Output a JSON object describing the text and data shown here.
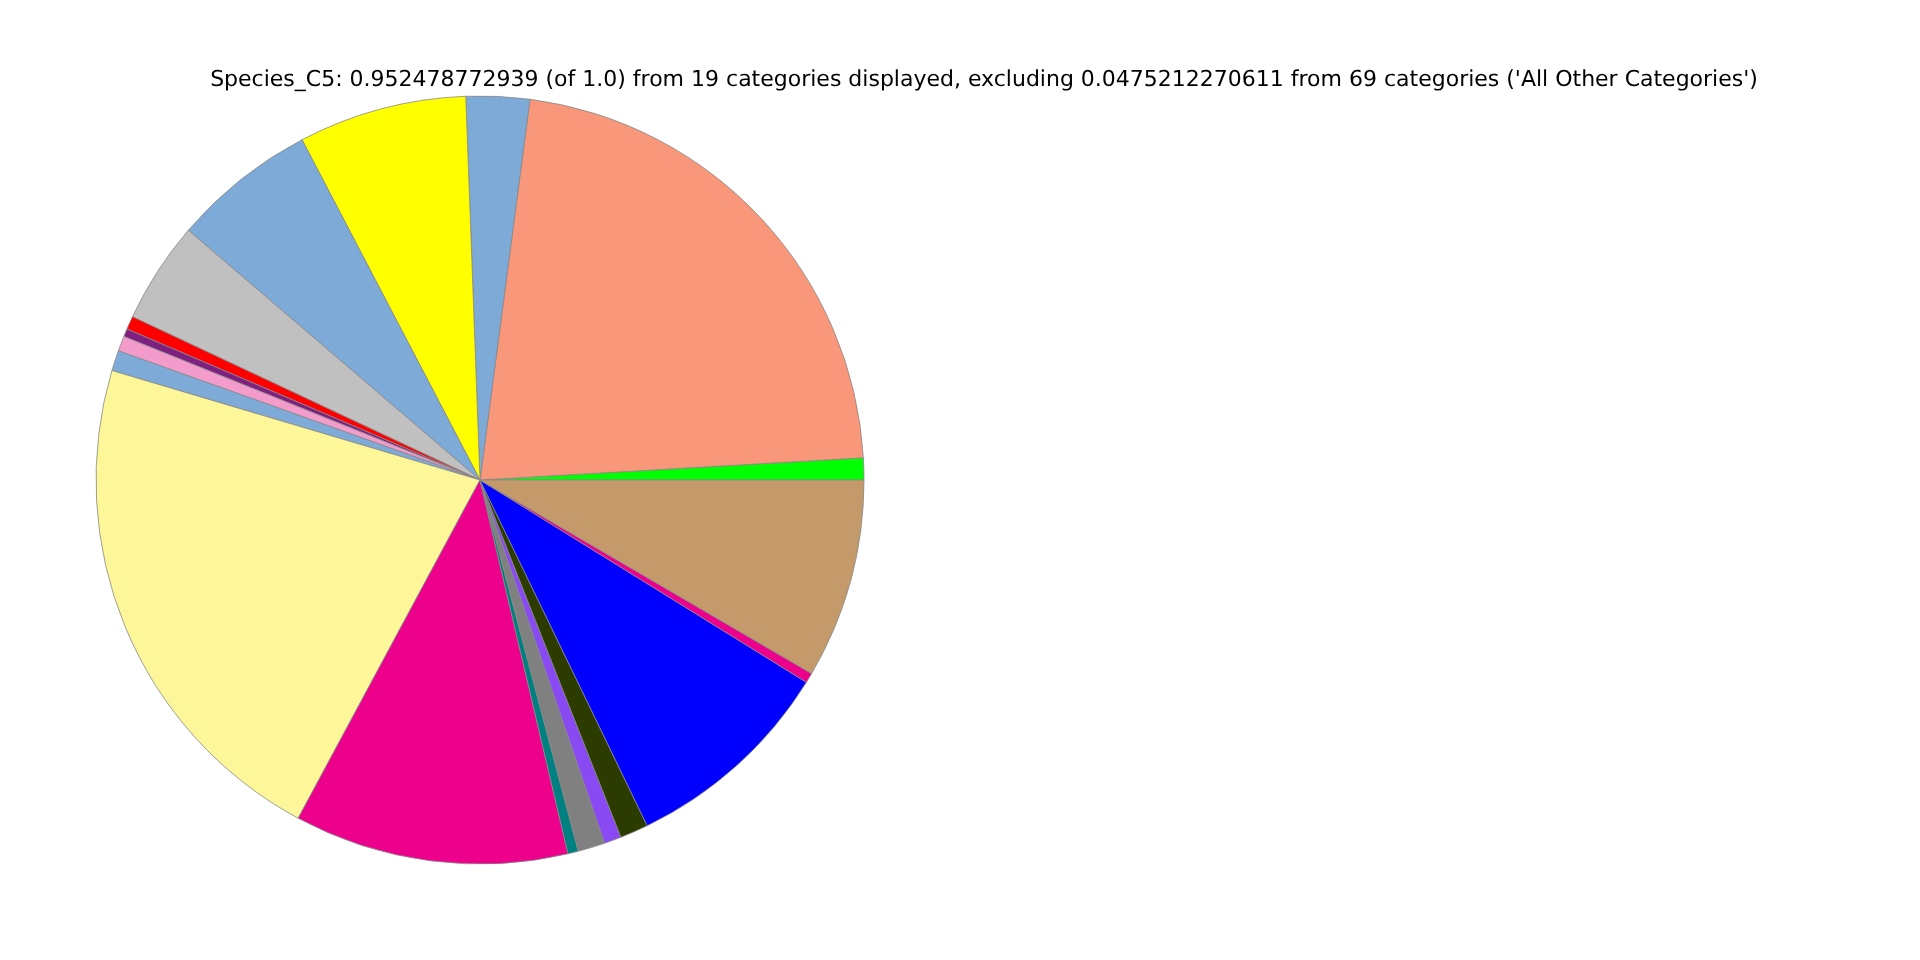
{
  "chart_data": {
    "type": "pie",
    "title": "Species_C5: 0.952478772939 (of 1.0) from 19 categories displayed, excluding 0.0475212270611 from 69 categories ('All Other Categories')",
    "categories": [
      null,
      null,
      null,
      null,
      null,
      null,
      null,
      null,
      null,
      null,
      null,
      null,
      null,
      null,
      null,
      null,
      null,
      null,
      null
    ],
    "values": [
      0.92,
      22.0,
      2.67,
      7.08,
      6.06,
      4.28,
      0.56,
      0.33,
      0.64,
      0.86,
      21.75,
      11.53,
      0.44,
      1.14,
      0.72,
      1.19,
      9.0,
      0.42,
      8.41
    ],
    "colors": [
      "#00ff00",
      "#f9977a",
      "#7eaad8",
      "#ffff00",
      "#7eaad8",
      "#c0c0c0",
      "#ff0000",
      "#7f1f7f",
      "#f39ccc",
      "#7eaad8",
      "#fef799",
      "#ed008c",
      "#008080",
      "#808080",
      "#8a4af3",
      "#2c3b00",
      "#0000ff",
      "#ed008c",
      "#c49a6a"
    ]
  }
}
